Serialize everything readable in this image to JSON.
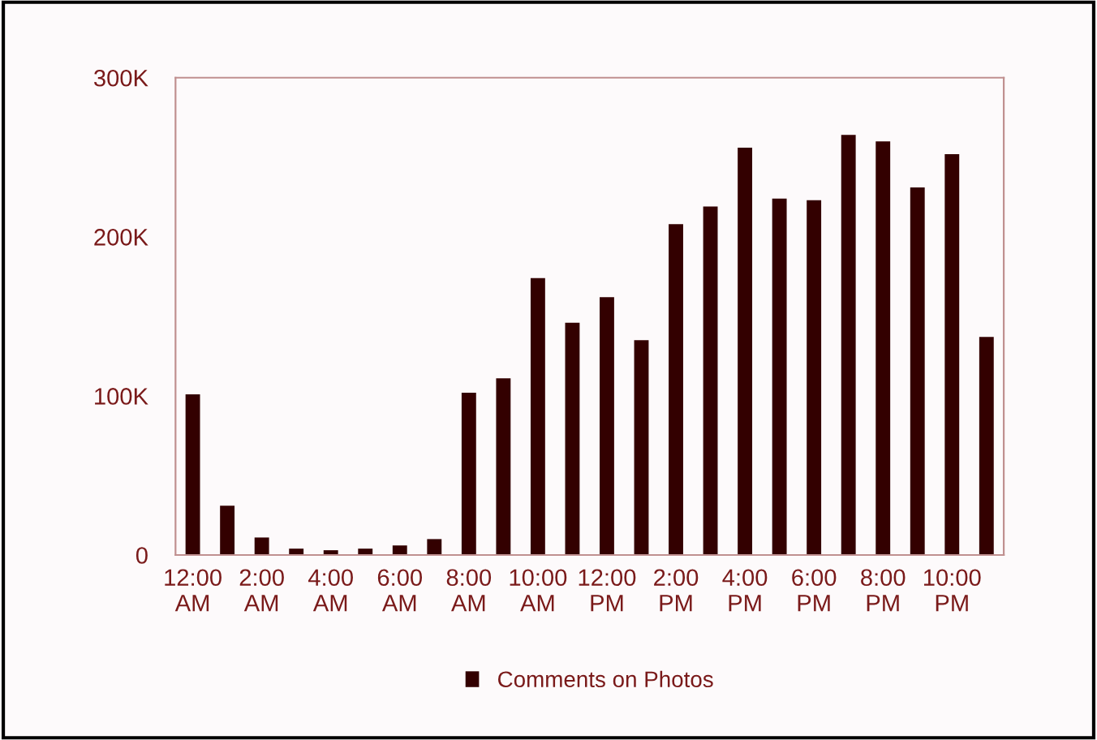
{
  "chart_data": {
    "type": "bar",
    "categories": [
      "12:00\nAM",
      null,
      "2:00\nAM",
      null,
      "4:00\nAM",
      null,
      "6:00\nAM",
      null,
      "8:00\nAM",
      null,
      "10:00\nAM",
      null,
      "12:00\nPM",
      null,
      "2:00\nPM",
      null,
      "4:00\nPM",
      null,
      "6:00\nPM",
      null,
      "8:00\nPM",
      null,
      "10:00\nPM",
      null
    ],
    "series": [
      {
        "name": "Comments on Photos",
        "color": "#330000",
        "values": [
          101000,
          31000,
          11000,
          4000,
          3000,
          4000,
          6000,
          10000,
          102000,
          111000,
          174000,
          146000,
          162000,
          135000,
          208000,
          219000,
          256000,
          224000,
          223000,
          264000,
          260000,
          231000,
          252000,
          137000
        ]
      }
    ],
    "ylim": [
      0,
      300000
    ],
    "yticks": [
      {
        "value": 0,
        "label": "0"
      },
      {
        "value": 100000,
        "label": "100K"
      },
      {
        "value": 200000,
        "label": "200K"
      },
      {
        "value": 300000,
        "label": "300K"
      }
    ],
    "grid": false,
    "legend": "bottom"
  }
}
